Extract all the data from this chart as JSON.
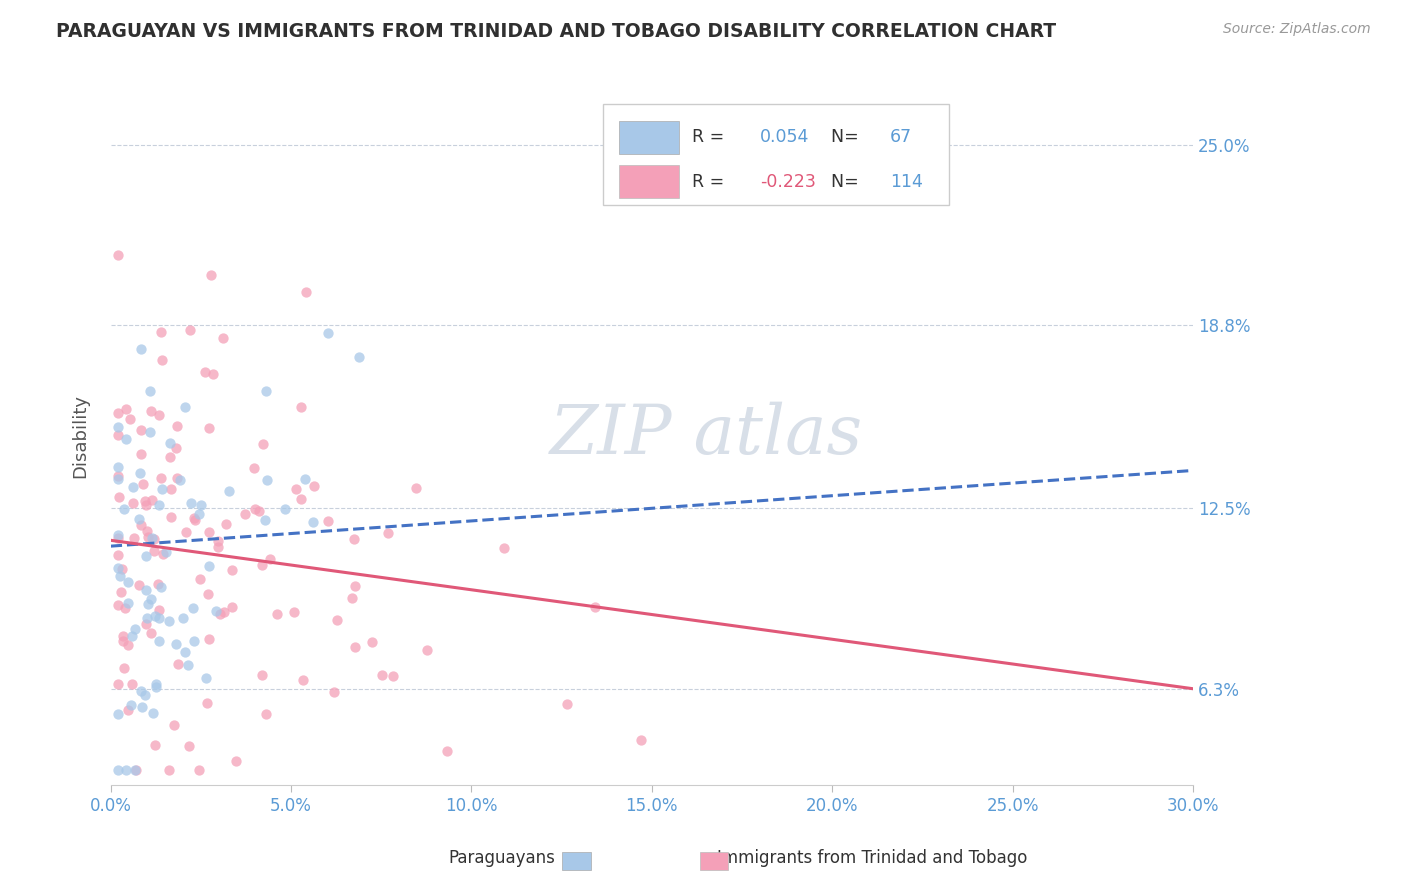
{
  "title": "PARAGUAYAN VS IMMIGRANTS FROM TRINIDAD AND TOBAGO DISABILITY CORRELATION CHART",
  "source": "Source: ZipAtlas.com",
  "ylabel": "Disability",
  "xlabel_ticks": [
    "0.0%",
    "5.0%",
    "10.0%",
    "15.0%",
    "20.0%",
    "25.0%",
    "30.0%"
  ],
  "xlabel_vals": [
    0.0,
    0.05,
    0.1,
    0.15,
    0.2,
    0.25,
    0.3
  ],
  "ytick_labels": [
    "6.3%",
    "12.5%",
    "18.8%",
    "25.0%"
  ],
  "ytick_vals": [
    0.063,
    0.125,
    0.188,
    0.25
  ],
  "xlim": [
    0.0,
    0.3
  ],
  "ylim": [
    0.03,
    0.27
  ],
  "paraguayan_R": 0.054,
  "paraguayan_N": 67,
  "tt_R": -0.223,
  "tt_N": 114,
  "blue_color": "#A8C8E8",
  "pink_color": "#F4A0B8",
  "blue_line_color": "#4472C4",
  "pink_line_color": "#E05878",
  "grid_color": "#C8D0DC",
  "background_color": "#FFFFFF",
  "title_color": "#303030",
  "axis_label_color": "#5B9BD5",
  "watermark_color": "#D8DFE8",
  "blue_line_start_y": 0.112,
  "blue_line_end_y": 0.138,
  "pink_line_start_y": 0.114,
  "pink_line_end_y": 0.063
}
